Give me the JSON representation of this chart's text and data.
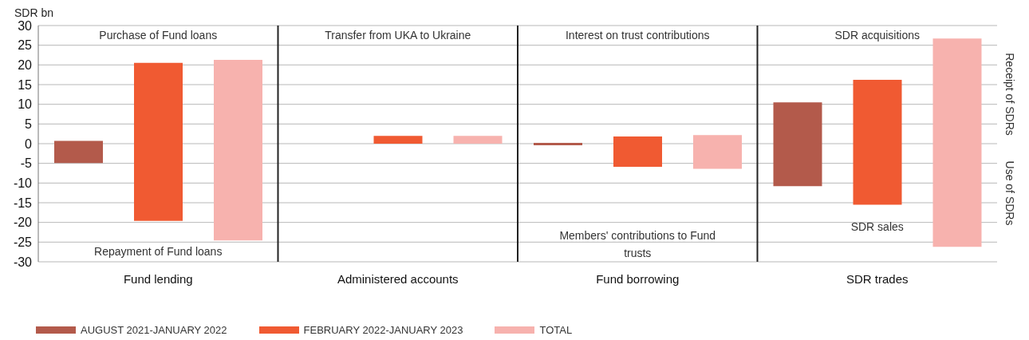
{
  "chart_data": {
    "type": "bar",
    "ylabel": "SDR bn",
    "categories": [
      "Fund lending",
      "Administered accounts",
      "Fund borrowing",
      "SDR trades"
    ],
    "series": [
      {
        "name": "AUGUST 2021-JANUARY 2022",
        "color": "#b35a4b",
        "base": [
          -4.9,
          null,
          -0.4,
          -10.8
        ],
        "values": [
          5.6,
          null,
          0.6,
          21.3
        ]
      },
      {
        "name": "FEBRUARY 2022-JANUARY 2023",
        "color": "#f05a32",
        "base": [
          -19.6,
          0,
          -5.9,
          -15.5
        ],
        "values": [
          40.1,
          2.0,
          7.7,
          31.7
        ]
      },
      {
        "name": "TOTAL",
        "color": "#f7b2ae",
        "base": [
          -24.6,
          0,
          -6.4,
          -26.2
        ],
        "values": [
          45.9,
          2.0,
          8.6,
          52.9
        ]
      }
    ],
    "ylim": [
      -30,
      30
    ],
    "yticks": [
      -30,
      -25,
      -20,
      -15,
      -10,
      -5,
      0,
      5,
      10,
      15,
      20,
      25,
      30
    ],
    "grid": true,
    "legend": "bottom left",
    "annotations": [
      "Purchase of Fund loans",
      "Repayment of Fund loans",
      "Transfer from UKA to Ukraine",
      "Interest on trust contributions",
      "Members' contributions to Fund trusts",
      "SDR acquisitions",
      "SDR sales",
      "Receipt of SDRs",
      "Use of SDRs"
    ]
  }
}
